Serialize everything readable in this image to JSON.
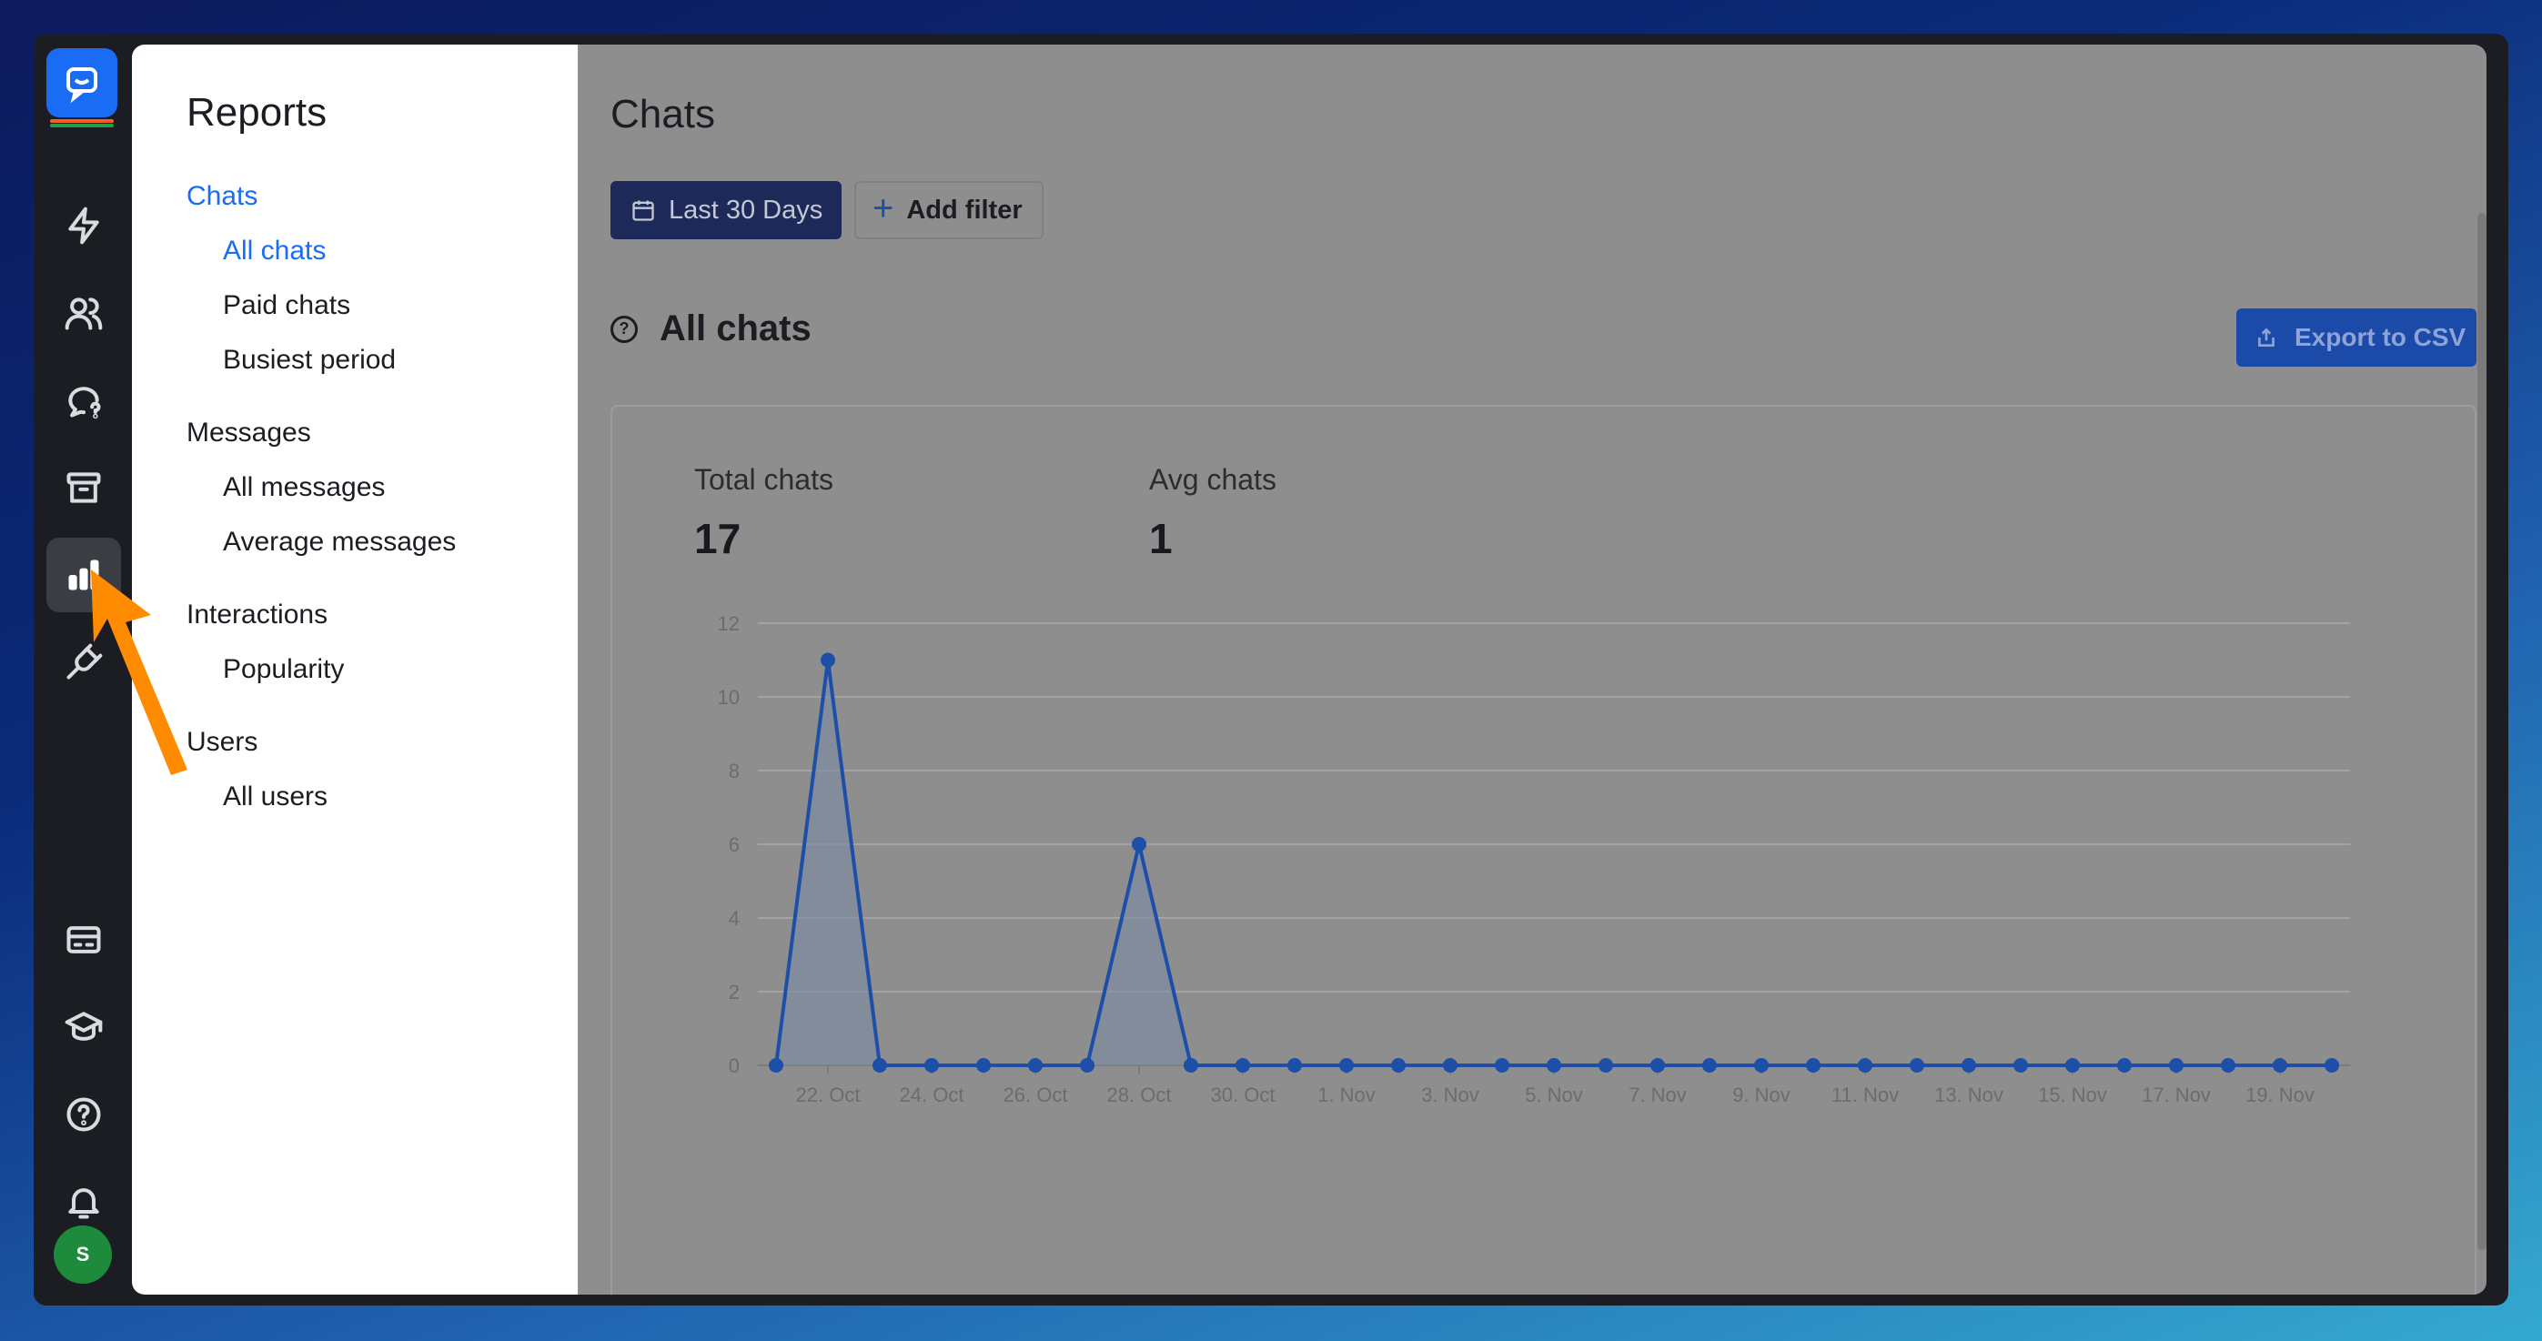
{
  "sidebar_reports": {
    "title": "Reports",
    "groups": [
      {
        "label": "Chats",
        "items": [
          "All chats",
          "Paid chats",
          "Busiest period"
        ]
      },
      {
        "label": "Messages",
        "items": [
          "All messages",
          "Average messages"
        ]
      },
      {
        "label": "Interactions",
        "items": [
          "Popularity"
        ]
      },
      {
        "label": "Users",
        "items": [
          "All users"
        ]
      }
    ]
  },
  "rail": {
    "icons": [
      "logo-icon",
      "lightning-icon",
      "users-icon",
      "chat-question-icon",
      "archive-icon",
      "reports-icon",
      "plug-icon",
      "billing-icon",
      "academy-icon",
      "help-icon",
      "bell-icon"
    ],
    "avatar_initial": "S"
  },
  "main": {
    "title": "Chats",
    "date_button": "Last 30 Days",
    "filter_button": "Add filter",
    "section_title": "All chats",
    "export_button": "Export to CSV",
    "stats": {
      "total_label": "Total chats",
      "total_value": "17",
      "avg_label": "Avg chats",
      "avg_value": "1"
    }
  },
  "colors": {
    "accent": "#1a6cf5",
    "line": "#1d4ea8",
    "overlay": "#8e8e8e",
    "arrow": "#ff8c00"
  },
  "chart_data": {
    "type": "line",
    "title": "",
    "xlabel": "",
    "ylabel": "",
    "ylim": [
      0,
      12
    ],
    "yticks": [
      0,
      2,
      4,
      6,
      8,
      10,
      12
    ],
    "xtick_labels": [
      "22. Oct",
      "24. Oct",
      "26. Oct",
      "28. Oct",
      "30. Oct",
      "1. Nov",
      "3. Nov",
      "5. Nov",
      "7. Nov",
      "9. Nov",
      "11. Nov",
      "13. Nov",
      "15. Nov",
      "17. Nov",
      "19. Nov"
    ],
    "x": [
      "21. Oct",
      "22. Oct",
      "23. Oct",
      "24. Oct",
      "25. Oct",
      "26. Oct",
      "27. Oct",
      "28. Oct",
      "29. Oct",
      "30. Oct",
      "31. Oct",
      "1. Nov",
      "2. Nov",
      "3. Nov",
      "4. Nov",
      "5. Nov",
      "6. Nov",
      "7. Nov",
      "8. Nov",
      "9. Nov",
      "10. Nov",
      "11. Nov",
      "12. Nov",
      "13. Nov",
      "14. Nov",
      "15. Nov",
      "16. Nov",
      "17. Nov",
      "18. Nov",
      "19. Nov",
      "20. Nov"
    ],
    "series": [
      {
        "values": [
          0,
          11,
          0,
          0,
          0,
          0,
          0,
          6,
          0,
          0,
          0,
          0,
          0,
          0,
          0,
          0,
          0,
          0,
          0,
          0,
          0,
          0,
          0,
          0,
          0,
          0,
          0,
          0,
          0,
          0,
          0
        ]
      }
    ],
    "grid": true
  }
}
